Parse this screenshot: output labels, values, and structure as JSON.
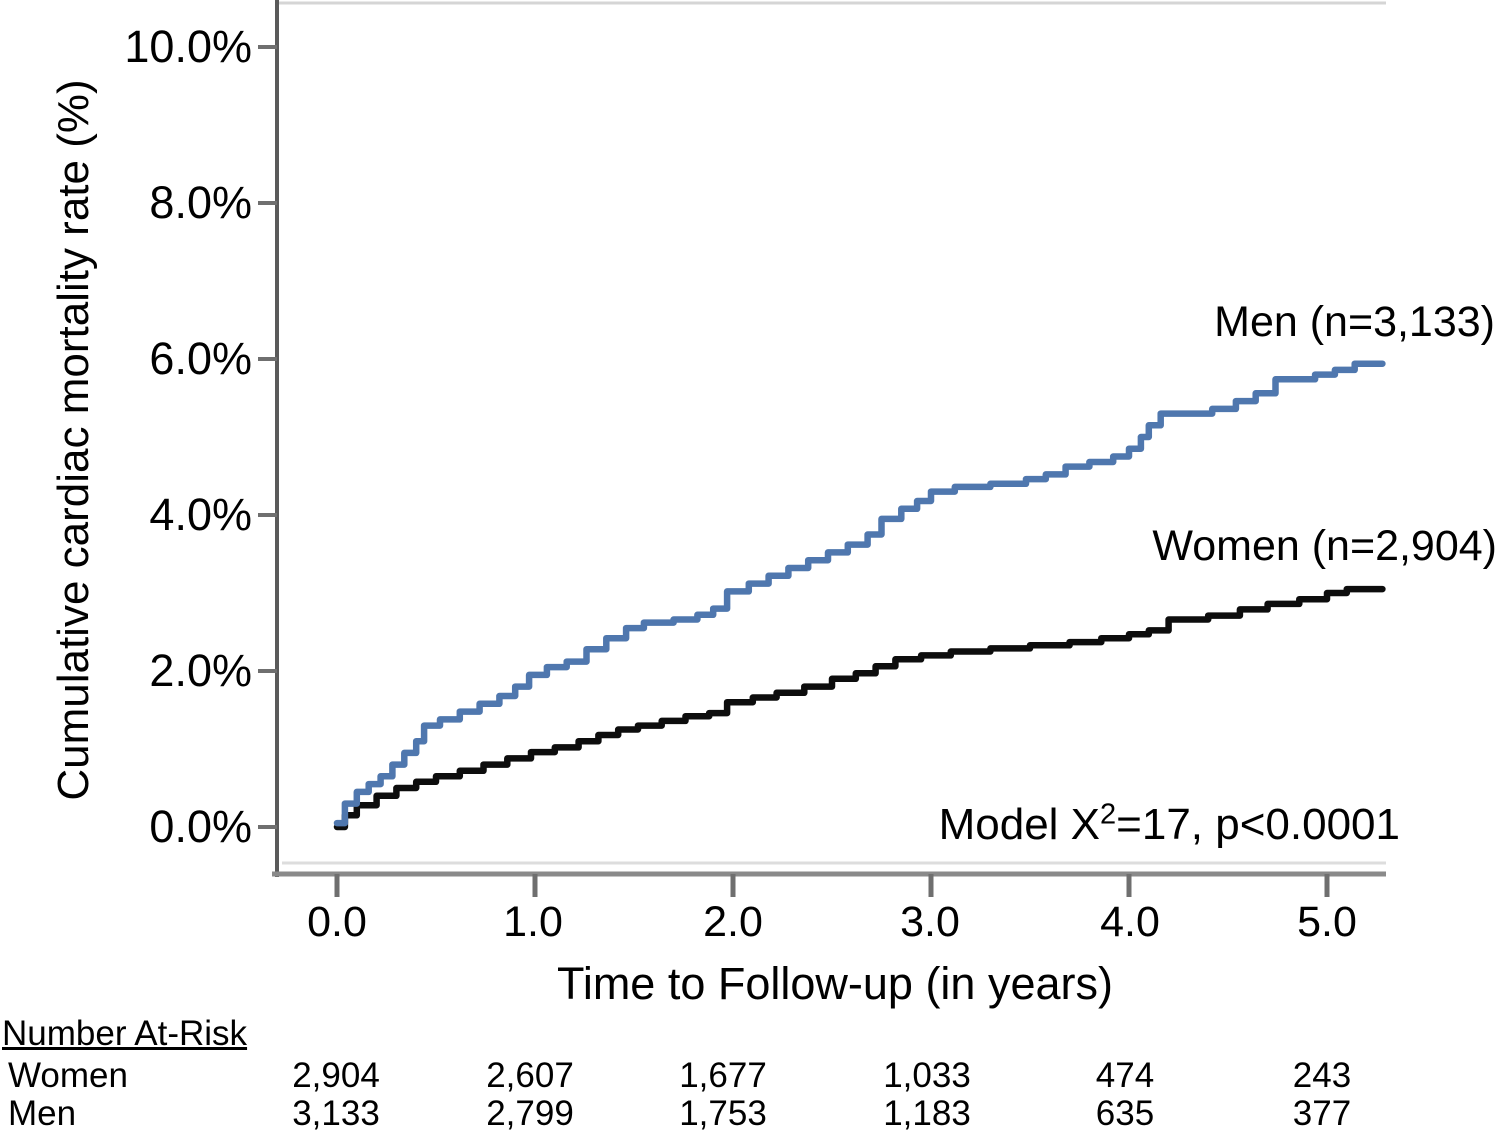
{
  "chart_data": {
    "type": "line",
    "subtype": "kaplan-meier-step",
    "title": "",
    "xlabel": "Time to Follow-up (in years)",
    "ylabel": "Cumulative cardiac mortality rate (%)",
    "x_ticks": [
      "0.0",
      "1.0",
      "2.0",
      "3.0",
      "4.0",
      "5.0"
    ],
    "x_tick_values": [
      0,
      1,
      2,
      3,
      4,
      5
    ],
    "y_ticks": [
      "10.0%",
      "8.0%",
      "6.0%",
      "4.0%",
      "2.0%",
      "0.0%"
    ],
    "y_tick_values": [
      10,
      8,
      6,
      4,
      2,
      0
    ],
    "xlim": [
      -0.3,
      5.3
    ],
    "ylim": [
      0,
      10.6
    ],
    "grid": false,
    "legend_position": "labels-at-line-ends",
    "annotation": {
      "prefix": "Model X",
      "sup": "2",
      "suffix": "=17, p<0.0001"
    },
    "colors": {
      "men_line": "#4f77ae",
      "women_line": "#0d0d0d",
      "axis": "#8a8a8a"
    },
    "series": [
      {
        "name": "Men",
        "label": "Men (n=3,133)",
        "n": 3133,
        "color": "#4f77ae",
        "step_points": [
          [
            0.0,
            0.05
          ],
          [
            0.04,
            0.3
          ],
          [
            0.1,
            0.45
          ],
          [
            0.16,
            0.55
          ],
          [
            0.22,
            0.65
          ],
          [
            0.28,
            0.8
          ],
          [
            0.34,
            0.95
          ],
          [
            0.4,
            1.1
          ],
          [
            0.44,
            1.3
          ],
          [
            0.52,
            1.38
          ],
          [
            0.62,
            1.48
          ],
          [
            0.72,
            1.58
          ],
          [
            0.82,
            1.68
          ],
          [
            0.9,
            1.8
          ],
          [
            0.97,
            1.95
          ],
          [
            1.06,
            2.05
          ],
          [
            1.16,
            2.12
          ],
          [
            1.26,
            2.28
          ],
          [
            1.36,
            2.42
          ],
          [
            1.46,
            2.55
          ],
          [
            1.55,
            2.62
          ],
          [
            1.7,
            2.66
          ],
          [
            1.82,
            2.72
          ],
          [
            1.9,
            2.8
          ],
          [
            1.97,
            3.02
          ],
          [
            2.08,
            3.12
          ],
          [
            2.18,
            3.22
          ],
          [
            2.28,
            3.32
          ],
          [
            2.38,
            3.42
          ],
          [
            2.48,
            3.52
          ],
          [
            2.58,
            3.62
          ],
          [
            2.68,
            3.75
          ],
          [
            2.75,
            3.95
          ],
          [
            2.85,
            4.08
          ],
          [
            2.93,
            4.18
          ],
          [
            3.0,
            4.3
          ],
          [
            3.12,
            4.36
          ],
          [
            3.3,
            4.4
          ],
          [
            3.48,
            4.46
          ],
          [
            3.58,
            4.52
          ],
          [
            3.68,
            4.62
          ],
          [
            3.8,
            4.68
          ],
          [
            3.92,
            4.75
          ],
          [
            4.0,
            4.85
          ],
          [
            4.06,
            5.0
          ],
          [
            4.1,
            5.15
          ],
          [
            4.16,
            5.3
          ],
          [
            4.42,
            5.36
          ],
          [
            4.54,
            5.46
          ],
          [
            4.64,
            5.56
          ],
          [
            4.74,
            5.74
          ],
          [
            4.94,
            5.8
          ],
          [
            5.04,
            5.86
          ],
          [
            5.14,
            5.94
          ],
          [
            5.28,
            5.94
          ]
        ]
      },
      {
        "name": "Women",
        "label": "Women (n=2,904)",
        "n": 2904,
        "color": "#0d0d0d",
        "step_points": [
          [
            0.0,
            0.0
          ],
          [
            0.04,
            0.15
          ],
          [
            0.1,
            0.28
          ],
          [
            0.2,
            0.4
          ],
          [
            0.3,
            0.5
          ],
          [
            0.4,
            0.58
          ],
          [
            0.5,
            0.65
          ],
          [
            0.62,
            0.72
          ],
          [
            0.74,
            0.8
          ],
          [
            0.86,
            0.88
          ],
          [
            0.98,
            0.96
          ],
          [
            1.1,
            1.02
          ],
          [
            1.22,
            1.1
          ],
          [
            1.32,
            1.18
          ],
          [
            1.42,
            1.25
          ],
          [
            1.52,
            1.3
          ],
          [
            1.64,
            1.36
          ],
          [
            1.76,
            1.42
          ],
          [
            1.88,
            1.46
          ],
          [
            1.97,
            1.6
          ],
          [
            2.1,
            1.66
          ],
          [
            2.22,
            1.72
          ],
          [
            2.36,
            1.8
          ],
          [
            2.5,
            1.9
          ],
          [
            2.62,
            1.97
          ],
          [
            2.72,
            2.06
          ],
          [
            2.82,
            2.15
          ],
          [
            2.95,
            2.2
          ],
          [
            3.1,
            2.25
          ],
          [
            3.3,
            2.29
          ],
          [
            3.5,
            2.33
          ],
          [
            3.7,
            2.37
          ],
          [
            3.86,
            2.42
          ],
          [
            4.0,
            2.47
          ],
          [
            4.1,
            2.52
          ],
          [
            4.2,
            2.66
          ],
          [
            4.4,
            2.71
          ],
          [
            4.56,
            2.79
          ],
          [
            4.7,
            2.86
          ],
          [
            4.86,
            2.92
          ],
          [
            5.0,
            3.0
          ],
          [
            5.1,
            3.05
          ],
          [
            5.28,
            3.05
          ]
        ]
      }
    ]
  },
  "risk_table": {
    "title": "Number At-Risk",
    "time_points": [
      "0.0",
      "1.0",
      "2.0",
      "3.0",
      "4.0",
      "5.0"
    ],
    "rows": [
      {
        "label": "Women",
        "values": [
          "2,904",
          "2,607",
          "1,677",
          "1,033",
          "474",
          "243"
        ]
      },
      {
        "label": "Men",
        "values": [
          "3,133",
          "2,799",
          "1,753",
          "1,183",
          "635",
          "377"
        ]
      }
    ]
  }
}
